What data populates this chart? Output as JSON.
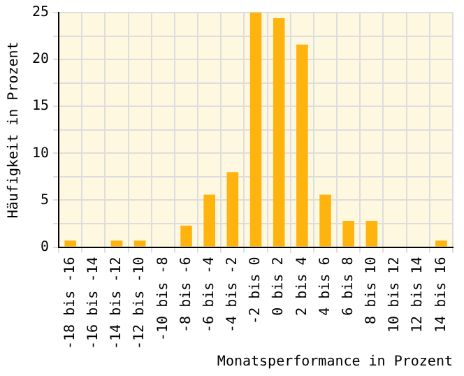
{
  "chart_data": {
    "type": "bar",
    "xlabel": "Monatsperformance in Prozent",
    "ylabel": "Häufigkeit in Prozent",
    "categories": [
      "-18 bis -16",
      "-16 bis -14",
      "-14 bis -12",
      "-12 bis -10",
      "-10 bis -8",
      "-8 bis -6",
      "-6 bis -4",
      "-4 bis -2",
      "-2 bis 0",
      "0 bis 2",
      "2 bis 4",
      "4 bis 6",
      "6 bis 8",
      "8 bis 10",
      "10 bis 12",
      "12 bis 14",
      "14 bis 16"
    ],
    "values": [
      0.7,
      0,
      0.7,
      0.7,
      0,
      2.3,
      5.6,
      8,
      25,
      24.4,
      21.6,
      5.6,
      2.8,
      2.8,
      0,
      0,
      0.7
    ],
    "color": "#ffb30f",
    "ylim": [
      0,
      25
    ],
    "yticks": [
      0,
      {
        "value": 2.5,
        "label": null
      },
      5,
      {
        "value": 7.5,
        "label": null
      },
      10,
      {
        "value": 12.5,
        "label": null
      },
      15,
      {
        "value": 17.5,
        "label": null
      },
      20,
      {
        "value": 22.5,
        "label": null
      },
      25
    ],
    "grid": true,
    "legend": false
  }
}
